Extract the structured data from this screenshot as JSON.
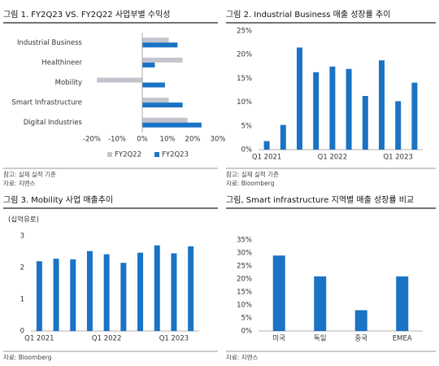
{
  "chart_data": [
    {
      "type": "hbar",
      "title": "그림 1. FY2Q23 VS. FY2Q22 사업부별 수익성",
      "categories": [
        "Industrial Business",
        "Healthineer",
        "Mobility",
        "Smart Infrastructure",
        "Digital Industries"
      ],
      "series": [
        {
          "name": "FY2Q22",
          "color": "#c4c4cc",
          "values": [
            10.5,
            16,
            -18,
            10.5,
            18
          ]
        },
        {
          "name": "FY2Q23",
          "color": "#1a73c4",
          "values": [
            14,
            5,
            9,
            16,
            23.5
          ]
        }
      ],
      "xlim": [
        -20,
        30
      ],
      "xticks": [
        {
          "value": -20,
          "label": "-20%"
        },
        {
          "value": -10,
          "label": "-10%"
        },
        {
          "value": 0,
          "label": "0%"
        },
        {
          "value": 10,
          "label": "10%"
        },
        {
          "value": 20,
          "label": "20%"
        },
        {
          "value": 30,
          "label": "30%"
        }
      ],
      "notes": [
        "참고: 실제 실적 기준",
        "자료: 지멘스"
      ]
    },
    {
      "type": "bar",
      "title": "그림 2. Industrial Business 매출 성장률 추이",
      "categories": [
        "Q1 2021",
        null,
        null,
        null,
        "Q1 2022",
        null,
        null,
        null,
        "Q1 2023",
        null
      ],
      "values": [
        1.8,
        5.2,
        21.5,
        16.3,
        17.5,
        17,
        11.3,
        18.8,
        10.2,
        14.1
      ],
      "color": "#1a73c4",
      "ylim": [
        0,
        25
      ],
      "yticks": [
        {
          "value": 0,
          "label": "0%"
        },
        {
          "value": 5,
          "label": "5%"
        },
        {
          "value": 10,
          "label": "10%"
        },
        {
          "value": 15,
          "label": "15%"
        },
        {
          "value": 20,
          "label": "20%"
        },
        {
          "value": 25,
          "label": "25%"
        }
      ],
      "notes": [
        "참고: 실제 실적 기준",
        "자료: Bloomberg"
      ]
    },
    {
      "type": "bar",
      "title": "그림 3. Mobility 사업 매출추이",
      "y_label": "(십억유로)",
      "categories": [
        "Q1 2021",
        null,
        null,
        null,
        "Q1 2022",
        null,
        null,
        null,
        "Q1 2023",
        null
      ],
      "values": [
        2.2,
        2.28,
        2.26,
        2.52,
        2.42,
        2.15,
        2.47,
        2.7,
        2.45,
        2.67
      ],
      "color": "#1a73c4",
      "ylim": [
        0,
        3
      ],
      "yticks": [
        0,
        1,
        2,
        3
      ],
      "notes": [
        "자료: Bloomberg"
      ]
    },
    {
      "type": "bar",
      "title": "그림, Smart infrastructure 지역별 매출 성장률 비교",
      "categories": [
        "미국",
        "독일",
        "중국",
        "EMEA"
      ],
      "values": [
        29,
        21,
        8,
        21
      ],
      "color": "#1a73c4",
      "ylim": [
        0,
        35
      ],
      "yticks": [
        {
          "value": 0,
          "label": "0%"
        },
        {
          "value": 5,
          "label": "5%"
        },
        {
          "value": 10,
          "label": "10%"
        },
        {
          "value": 15,
          "label": "15%"
        },
        {
          "value": 20,
          "label": "20%"
        },
        {
          "value": 25,
          "label": "25%"
        },
        {
          "value": 30,
          "label": "30%"
        },
        {
          "value": 35,
          "label": "35%"
        }
      ],
      "notes": [
        "자료: 지멘스"
      ]
    }
  ]
}
